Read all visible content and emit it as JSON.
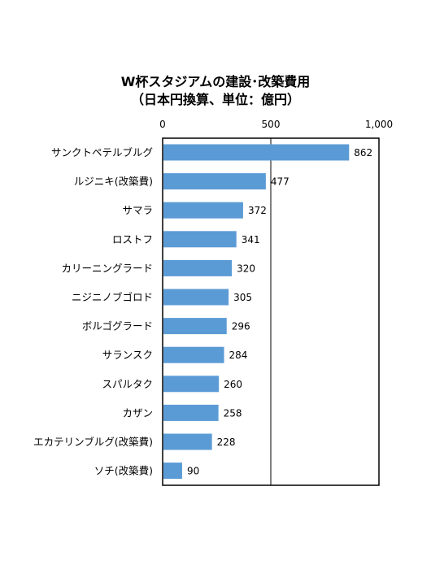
{
  "chart_data": {
    "type": "bar",
    "orientation": "horizontal",
    "title": "W杯スタジアムの建設･改築費用",
    "subtitle": "（日本円換算、単位：億円）",
    "categories": [
      "サンクトペテルブルグ",
      "ルジニキ(改築費)",
      "サマラ",
      "ロストフ",
      "カリーニングラード",
      "ニジニノブゴロド",
      "ボルゴグラード",
      "サランスク",
      "スパルタク",
      "カザン",
      "エカテリンブルグ(改築費)",
      "ソチ(改築費)"
    ],
    "values": [
      862,
      477,
      372,
      341,
      320,
      305,
      296,
      284,
      260,
      258,
      228,
      90
    ],
    "data_labels": [
      "862",
      "477",
      "372",
      "341",
      "320",
      "305",
      "296",
      "284",
      "260",
      "258",
      "228",
      "90"
    ],
    "xlim": [
      0,
      1000
    ],
    "xticks": [
      0,
      500,
      1000
    ],
    "xtick_labels": [
      "0",
      "500",
      "1,000"
    ],
    "gridlines": true,
    "legend": "none",
    "bar_color": "#5b9bd5",
    "axis_color": "#000000"
  }
}
